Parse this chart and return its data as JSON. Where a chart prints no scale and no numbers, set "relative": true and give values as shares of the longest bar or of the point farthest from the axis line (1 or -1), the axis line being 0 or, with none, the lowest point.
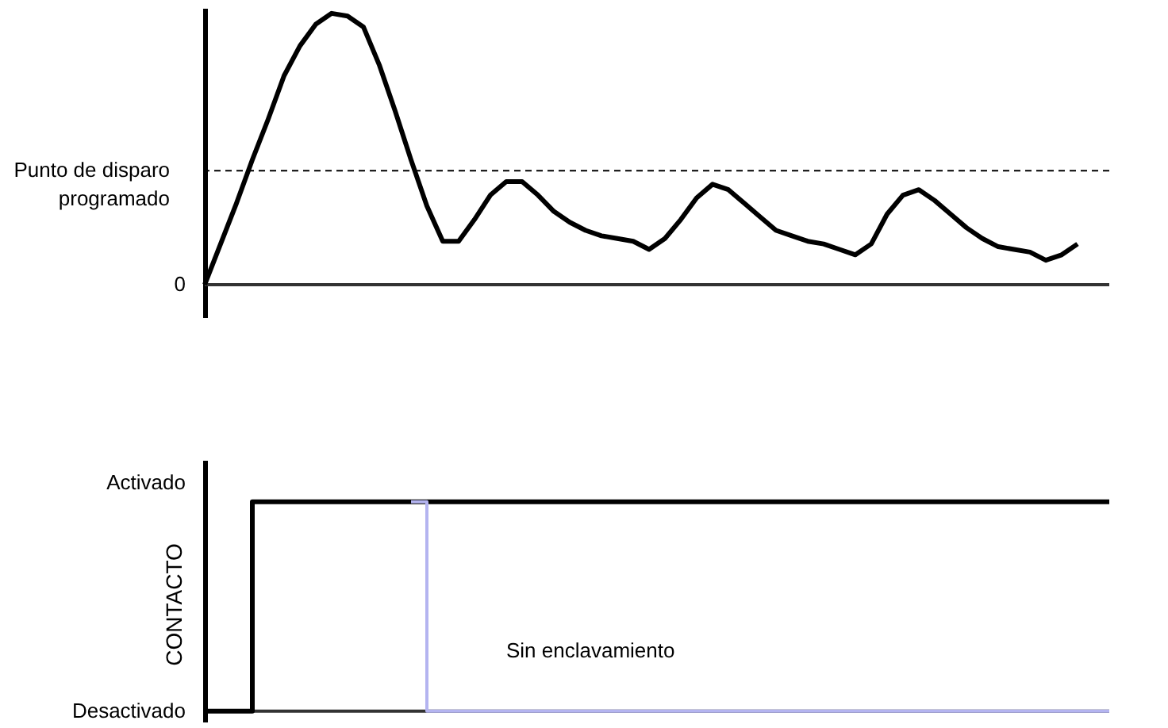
{
  "chart_data": [
    {
      "type": "line",
      "relative": true,
      "categories": [
        null,
        null,
        null,
        null,
        null,
        null,
        null,
        null,
        null,
        null,
        null,
        null,
        null,
        null,
        null,
        null,
        null,
        null,
        null,
        null,
        null,
        null,
        null,
        null,
        null,
        null,
        null,
        null,
        null,
        null,
        null,
        null,
        null,
        null,
        null,
        null,
        null,
        null,
        null,
        null,
        null,
        null,
        null,
        null,
        null,
        null,
        null,
        null,
        null,
        null,
        null,
        null,
        null,
        null,
        null,
        null,
        null,
        null
      ],
      "series": [
        {
          "color": "#000000",
          "values": [
            0,
            0.15,
            0.3,
            0.46,
            0.61,
            0.77,
            0.88,
            0.96,
            1,
            0.99,
            0.95,
            0.81,
            0.64,
            0.46,
            0.29,
            0.16,
            0.16,
            0.24,
            0.33,
            0.38,
            0.38,
            0.33,
            0.27,
            0.23,
            0.2,
            0.18,
            0.17,
            0.16,
            0.13,
            0.17,
            0.24,
            0.32,
            0.37,
            0.35,
            0.3,
            0.25,
            0.2,
            0.18,
            0.16,
            0.15,
            0.13,
            0.11,
            0.15,
            0.26,
            0.33,
            0.35,
            0.31,
            0.26,
            0.21,
            0.17,
            0.14,
            0.13,
            0.12,
            0.09,
            0.11,
            0.15,
            null,
            null
          ]
        }
      ],
      "ref_lines": [
        {
          "axis": "y",
          "value": 0.42,
          "label": "Punto de disparo programado",
          "line_style": "dashed",
          "color": "#000000"
        }
      ],
      "annotations": [
        "0"
      ]
    },
    {
      "type": "step",
      "relative": true,
      "ylabel": "CONTACTO",
      "annotations": [
        "Activado",
        "Desactivado"
      ],
      "categories": [
        null,
        null,
        null,
        null,
        null,
        null,
        null,
        null,
        null,
        null,
        null,
        null,
        null,
        null,
        null,
        null,
        null,
        null,
        null,
        null,
        null,
        null,
        null,
        null,
        null,
        null,
        null,
        null,
        null,
        null,
        null,
        null,
        null,
        null,
        null,
        null,
        null,
        null,
        null,
        null,
        null,
        null,
        null,
        null,
        null,
        null,
        null,
        null,
        null,
        null,
        null,
        null,
        null,
        null,
        null,
        null,
        null,
        null
      ],
      "series": [
        {
          "color": "#000000",
          "values": [
            0,
            0,
            0,
            1,
            1,
            1,
            1,
            1,
            1,
            1,
            1,
            1,
            1,
            1,
            1,
            1,
            1,
            1,
            1,
            1,
            1,
            1,
            1,
            1,
            1,
            1,
            1,
            1,
            1,
            1,
            1,
            1,
            1,
            1,
            1,
            1,
            1,
            1,
            1,
            1,
            1,
            1,
            1,
            1,
            1,
            1,
            1,
            1,
            1,
            1,
            1,
            1,
            1,
            1,
            1,
            1,
            1,
            1
          ]
        },
        {
          "name": "Sin enclavamiento",
          "color": "#b4b4f0",
          "values": [
            null,
            null,
            null,
            null,
            null,
            null,
            null,
            null,
            null,
            null,
            null,
            null,
            null,
            1,
            0,
            0,
            0,
            0,
            0,
            0,
            0,
            0,
            0,
            0,
            0,
            0,
            0,
            0,
            0,
            0,
            0,
            0,
            0,
            0,
            0,
            0,
            0,
            0,
            0,
            0,
            0,
            0,
            0,
            0,
            0,
            0,
            0,
            0,
            0,
            0,
            0,
            0,
            0,
            0,
            0,
            0,
            0,
            0
          ]
        }
      ]
    }
  ]
}
